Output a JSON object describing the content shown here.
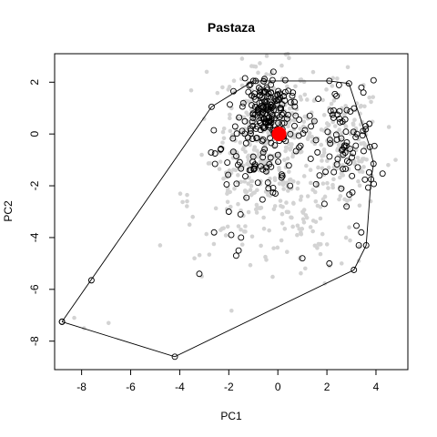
{
  "chart_data": {
    "type": "scatter",
    "title": "Pastaza",
    "xlabel": "PC1",
    "ylabel": "PC2",
    "xlim": [
      -9.1,
      5.3
    ],
    "ylim": [
      -9.1,
      3.1
    ],
    "x_ticks": [
      -8,
      -6,
      -4,
      -2,
      0,
      2,
      4
    ],
    "y_ticks": [
      -8,
      -6,
      -4,
      -2,
      0,
      2
    ],
    "grid": false,
    "legend": "none",
    "colors": {
      "background_points": "#d3d3d3",
      "highlight_outline": "#000000",
      "centroid": "#ff0000",
      "hull": "#000000"
    },
    "centroid": {
      "x": 0.05,
      "y": 0.0
    },
    "hull_vertices": [
      {
        "x": -8.8,
        "y": -7.25
      },
      {
        "x": -4.2,
        "y": -8.6
      },
      {
        "x": 3.1,
        "y": -5.25
      },
      {
        "x": 3.6,
        "y": -4.3
      },
      {
        "x": 3.8,
        "y": -1.75
      },
      {
        "x": 3.9,
        "y": -1.15
      },
      {
        "x": 3.75,
        "y": -0.5
      },
      {
        "x": 2.9,
        "y": 1.95
      },
      {
        "x": 2.1,
        "y": 2.05
      },
      {
        "x": -1.0,
        "y": 2.05
      },
      {
        "x": -2.7,
        "y": 1.05
      },
      {
        "x": -8.8,
        "y": -7.25
      }
    ]
  }
}
